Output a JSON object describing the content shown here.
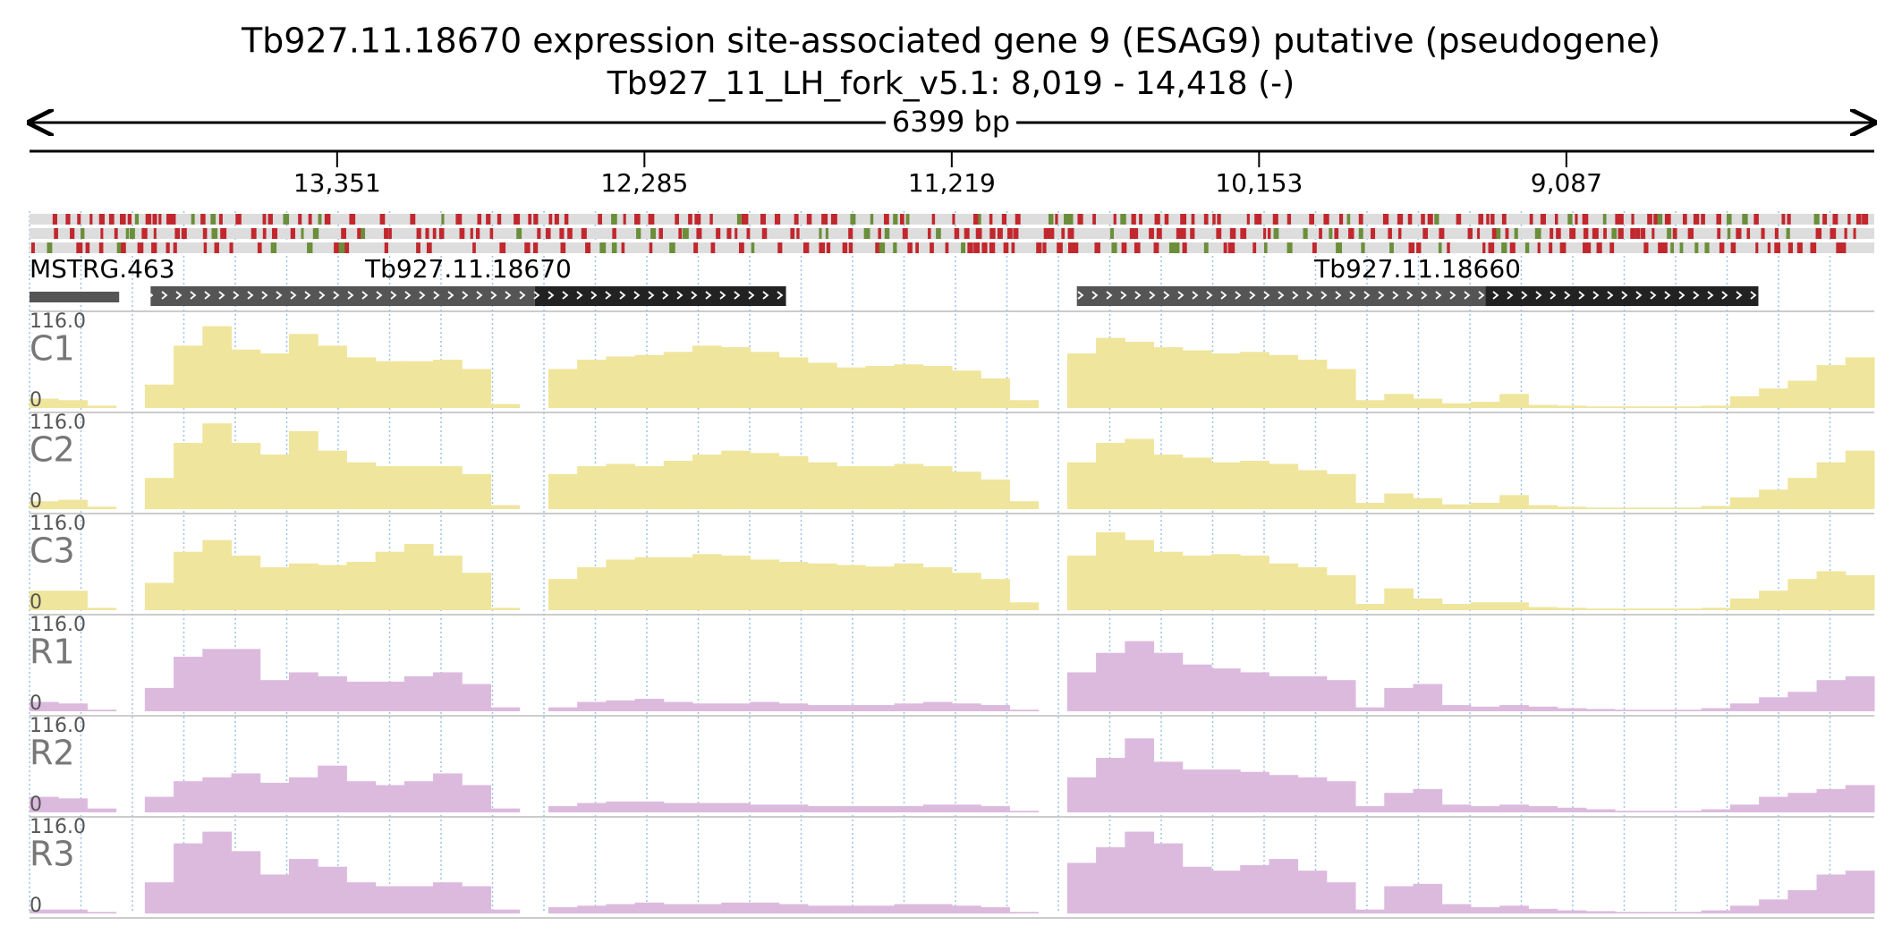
{
  "title": "Tb927.11.18670  expression site-associated gene 9 (ESAG9)  putative (pseudogene)",
  "subtitle": "Tb927_11_LH_fork_v5.1: 8,019 - 14,418 (-)",
  "length_label": "6399 bp",
  "xlim": [
    14418,
    8019
  ],
  "xticks": [
    {
      "value": 13351,
      "label": "13,351"
    },
    {
      "value": 12285,
      "label": "12,285"
    },
    {
      "value": 11219,
      "label": "11,219"
    },
    {
      "value": 10153,
      "label": "10,153"
    },
    {
      "value": 9087,
      "label": "9,087"
    }
  ],
  "genes": [
    {
      "label": "MSTRG.463",
      "segments": [
        {
          "start": 14418,
          "end": 14107,
          "color": "#555555"
        }
      ]
    },
    {
      "label": "Tb927.11.18670",
      "segments": [
        {
          "start": 13998,
          "end": 12665,
          "color": "#555555"
        },
        {
          "start": 12665,
          "end": 11794,
          "color": "#222222"
        }
      ]
    },
    {
      "label": "Tb927.11.18660",
      "segments": [
        {
          "start": 10785,
          "end": 9368,
          "color": "#555555"
        },
        {
          "start": 9368,
          "end": 8421,
          "color": "#222222"
        }
      ]
    }
  ],
  "tracks_ylim": [
    0,
    116
  ],
  "tracks_max_label": "116.0",
  "tracks_min_label": "0",
  "tracks": [
    {
      "name": "C1",
      "color": "#efe59c",
      "values": [
        12,
        10,
        3,
        0,
        30,
        80,
        105,
        75,
        70,
        95,
        80,
        65,
        60,
        60,
        62,
        50,
        5,
        0,
        50,
        62,
        66,
        68,
        72,
        80,
        78,
        72,
        65,
        58,
        52,
        54,
        56,
        54,
        48,
        38,
        10,
        0,
        70,
        90,
        85,
        78,
        74,
        70,
        72,
        68,
        62,
        50,
        10,
        18,
        12,
        6,
        8,
        18,
        4,
        3,
        2,
        2,
        2,
        2,
        3,
        15,
        25,
        35,
        55,
        65
      ]
    },
    {
      "name": "C2",
      "color": "#efe59c",
      "values": [
        10,
        12,
        3,
        0,
        40,
        85,
        110,
        85,
        70,
        100,
        75,
        60,
        55,
        55,
        55,
        45,
        5,
        0,
        45,
        55,
        58,
        55,
        62,
        70,
        75,
        72,
        68,
        60,
        55,
        55,
        58,
        55,
        48,
        38,
        10,
        0,
        60,
        85,
        90,
        70,
        66,
        60,
        62,
        58,
        50,
        45,
        8,
        20,
        14,
        6,
        8,
        18,
        5,
        3,
        2,
        2,
        2,
        2,
        4,
        15,
        25,
        40,
        60,
        75
      ]
    },
    {
      "name": "C3",
      "color": "#efe59c",
      "values": [
        25,
        25,
        3,
        0,
        35,
        75,
        90,
        70,
        55,
        60,
        58,
        62,
        75,
        85,
        70,
        48,
        3,
        0,
        40,
        55,
        65,
        68,
        68,
        72,
        70,
        65,
        62,
        60,
        58,
        56,
        60,
        55,
        48,
        40,
        10,
        0,
        70,
        100,
        90,
        75,
        70,
        72,
        70,
        60,
        55,
        45,
        8,
        28,
        15,
        8,
        10,
        10,
        4,
        3,
        2,
        2,
        2,
        2,
        3,
        15,
        25,
        40,
        50,
        45
      ]
    },
    {
      "name": "R1",
      "color": "#dcbade",
      "values": [
        12,
        10,
        2,
        0,
        30,
        70,
        80,
        80,
        40,
        50,
        45,
        38,
        38,
        45,
        50,
        35,
        5,
        0,
        5,
        12,
        14,
        16,
        12,
        10,
        10,
        12,
        10,
        8,
        8,
        8,
        10,
        12,
        10,
        8,
        2,
        0,
        50,
        75,
        90,
        75,
        60,
        55,
        50,
        45,
        45,
        40,
        5,
        30,
        35,
        8,
        6,
        8,
        6,
        4,
        3,
        2,
        2,
        2,
        4,
        10,
        18,
        25,
        40,
        45
      ]
    },
    {
      "name": "R2",
      "color": "#dcbade",
      "values": [
        20,
        18,
        5,
        0,
        20,
        40,
        45,
        50,
        38,
        45,
        60,
        40,
        35,
        40,
        50,
        35,
        5,
        0,
        8,
        12,
        14,
        14,
        12,
        12,
        12,
        10,
        10,
        8,
        8,
        8,
        8,
        10,
        10,
        8,
        2,
        0,
        45,
        70,
        95,
        65,
        55,
        55,
        52,
        48,
        45,
        40,
        8,
        25,
        30,
        10,
        8,
        10,
        8,
        6,
        4,
        2,
        2,
        2,
        4,
        10,
        20,
        25,
        30,
        35
      ]
    },
    {
      "name": "R3",
      "color": "#dcbade",
      "values": [
        5,
        5,
        2,
        0,
        40,
        90,
        105,
        80,
        50,
        70,
        60,
        40,
        35,
        35,
        40,
        35,
        5,
        0,
        8,
        10,
        12,
        14,
        12,
        12,
        14,
        14,
        12,
        10,
        10,
        10,
        12,
        12,
        10,
        8,
        2,
        0,
        65,
        85,
        105,
        90,
        60,
        55,
        62,
        70,
        55,
        40,
        5,
        35,
        38,
        12,
        8,
        10,
        6,
        4,
        3,
        2,
        2,
        2,
        4,
        10,
        18,
        30,
        50,
        55
      ]
    }
  ]
}
